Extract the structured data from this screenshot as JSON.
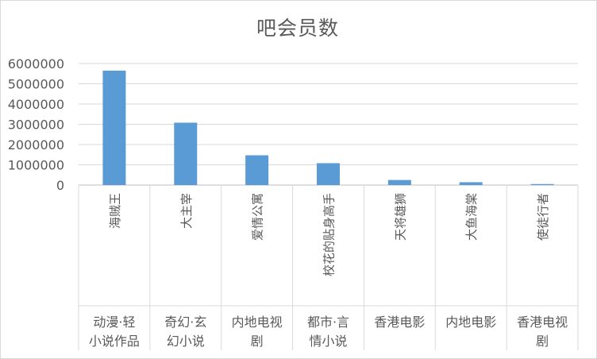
{
  "chart_data": {
    "type": "bar",
    "title": "吧会员数",
    "xlabel": "",
    "ylabel": "",
    "ylim": [
      0,
      6000000
    ],
    "yticks": [
      0,
      1000000,
      2000000,
      3000000,
      4000000,
      5000000,
      6000000
    ],
    "ytick_labels": [
      "0",
      "1000000",
      "2000000",
      "3000000",
      "4000000",
      "5000000",
      "6000000"
    ],
    "grid": true,
    "legend": "none",
    "bar_color": "#5b9bd5",
    "categories": [
      "海贼王",
      "大主宰",
      "爱情公寓",
      "校花的贴身高手",
      "天将雄狮",
      "大鱼海棠",
      "使徒行者"
    ],
    "groups": [
      "动漫·轻小说作品",
      "奇幻·玄幻小说",
      "内地电视剧",
      "都市·言情小说",
      "香港电影",
      "内地电影",
      "香港电视剧"
    ],
    "values": [
      5650000,
      3080000,
      1470000,
      1080000,
      250000,
      140000,
      50000
    ]
  }
}
